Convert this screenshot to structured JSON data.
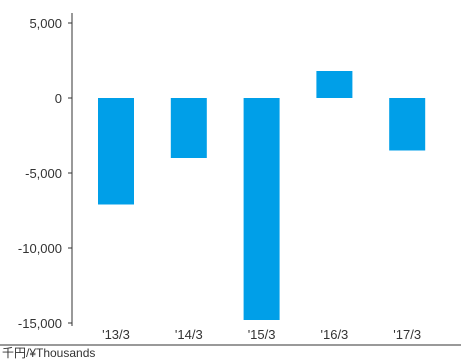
{
  "chart_data": {
    "type": "bar",
    "categories": [
      "'13/3",
      "'14/3",
      "'15/3",
      "'16/3",
      "'17/3"
    ],
    "values": [
      -7100,
      -4000,
      -14800,
      1800,
      -3500
    ],
    "ylim": [
      -15000,
      5000
    ],
    "yticks": [
      5000,
      0,
      -5000,
      -10000,
      -15000
    ],
    "ytick_labels": [
      "5,000",
      "0",
      "-5,000",
      "-10,000",
      "-15,000"
    ],
    "unit_label": "千円/¥Thousands",
    "bar_color": "#009fe8",
    "axis_color": "#333333",
    "grid": false,
    "legend": "none"
  }
}
